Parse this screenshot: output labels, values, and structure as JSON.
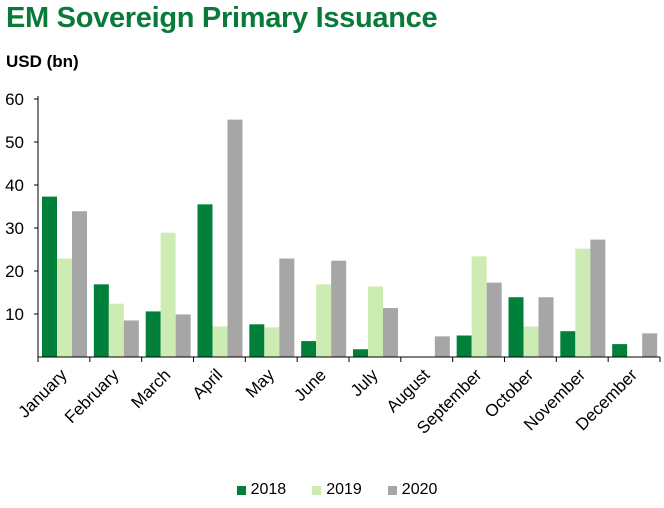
{
  "chart_data": {
    "type": "bar",
    "title": "EM Sovereign Primary Issuance",
    "ylabel": "USD (bn)",
    "xlabel": "",
    "categories": [
      "January",
      "February",
      "March",
      "April",
      "May",
      "June",
      "July",
      "August",
      "September",
      "October",
      "November",
      "December"
    ],
    "series": [
      {
        "name": "2018",
        "color": "#00803a",
        "values": [
          37.3,
          16.9,
          10.6,
          35.5,
          7.6,
          3.7,
          1.8,
          0,
          5.0,
          13.9,
          6.0,
          3.0
        ]
      },
      {
        "name": "2019",
        "color": "#cdecb4",
        "values": [
          22.9,
          12.4,
          28.9,
          7.1,
          6.9,
          16.9,
          16.4,
          0,
          23.4,
          7.1,
          25.2,
          0
        ]
      },
      {
        "name": "2020",
        "color": "#a6a6a6",
        "values": [
          33.9,
          8.5,
          9.9,
          55.2,
          22.9,
          22.4,
          11.4,
          4.8,
          17.3,
          13.9,
          27.3,
          5.5
        ]
      }
    ],
    "yticks": [
      10,
      20,
      30,
      40,
      50,
      60
    ],
    "ylim": [
      0,
      60
    ],
    "grid": false,
    "legend": "bottom-center"
  }
}
